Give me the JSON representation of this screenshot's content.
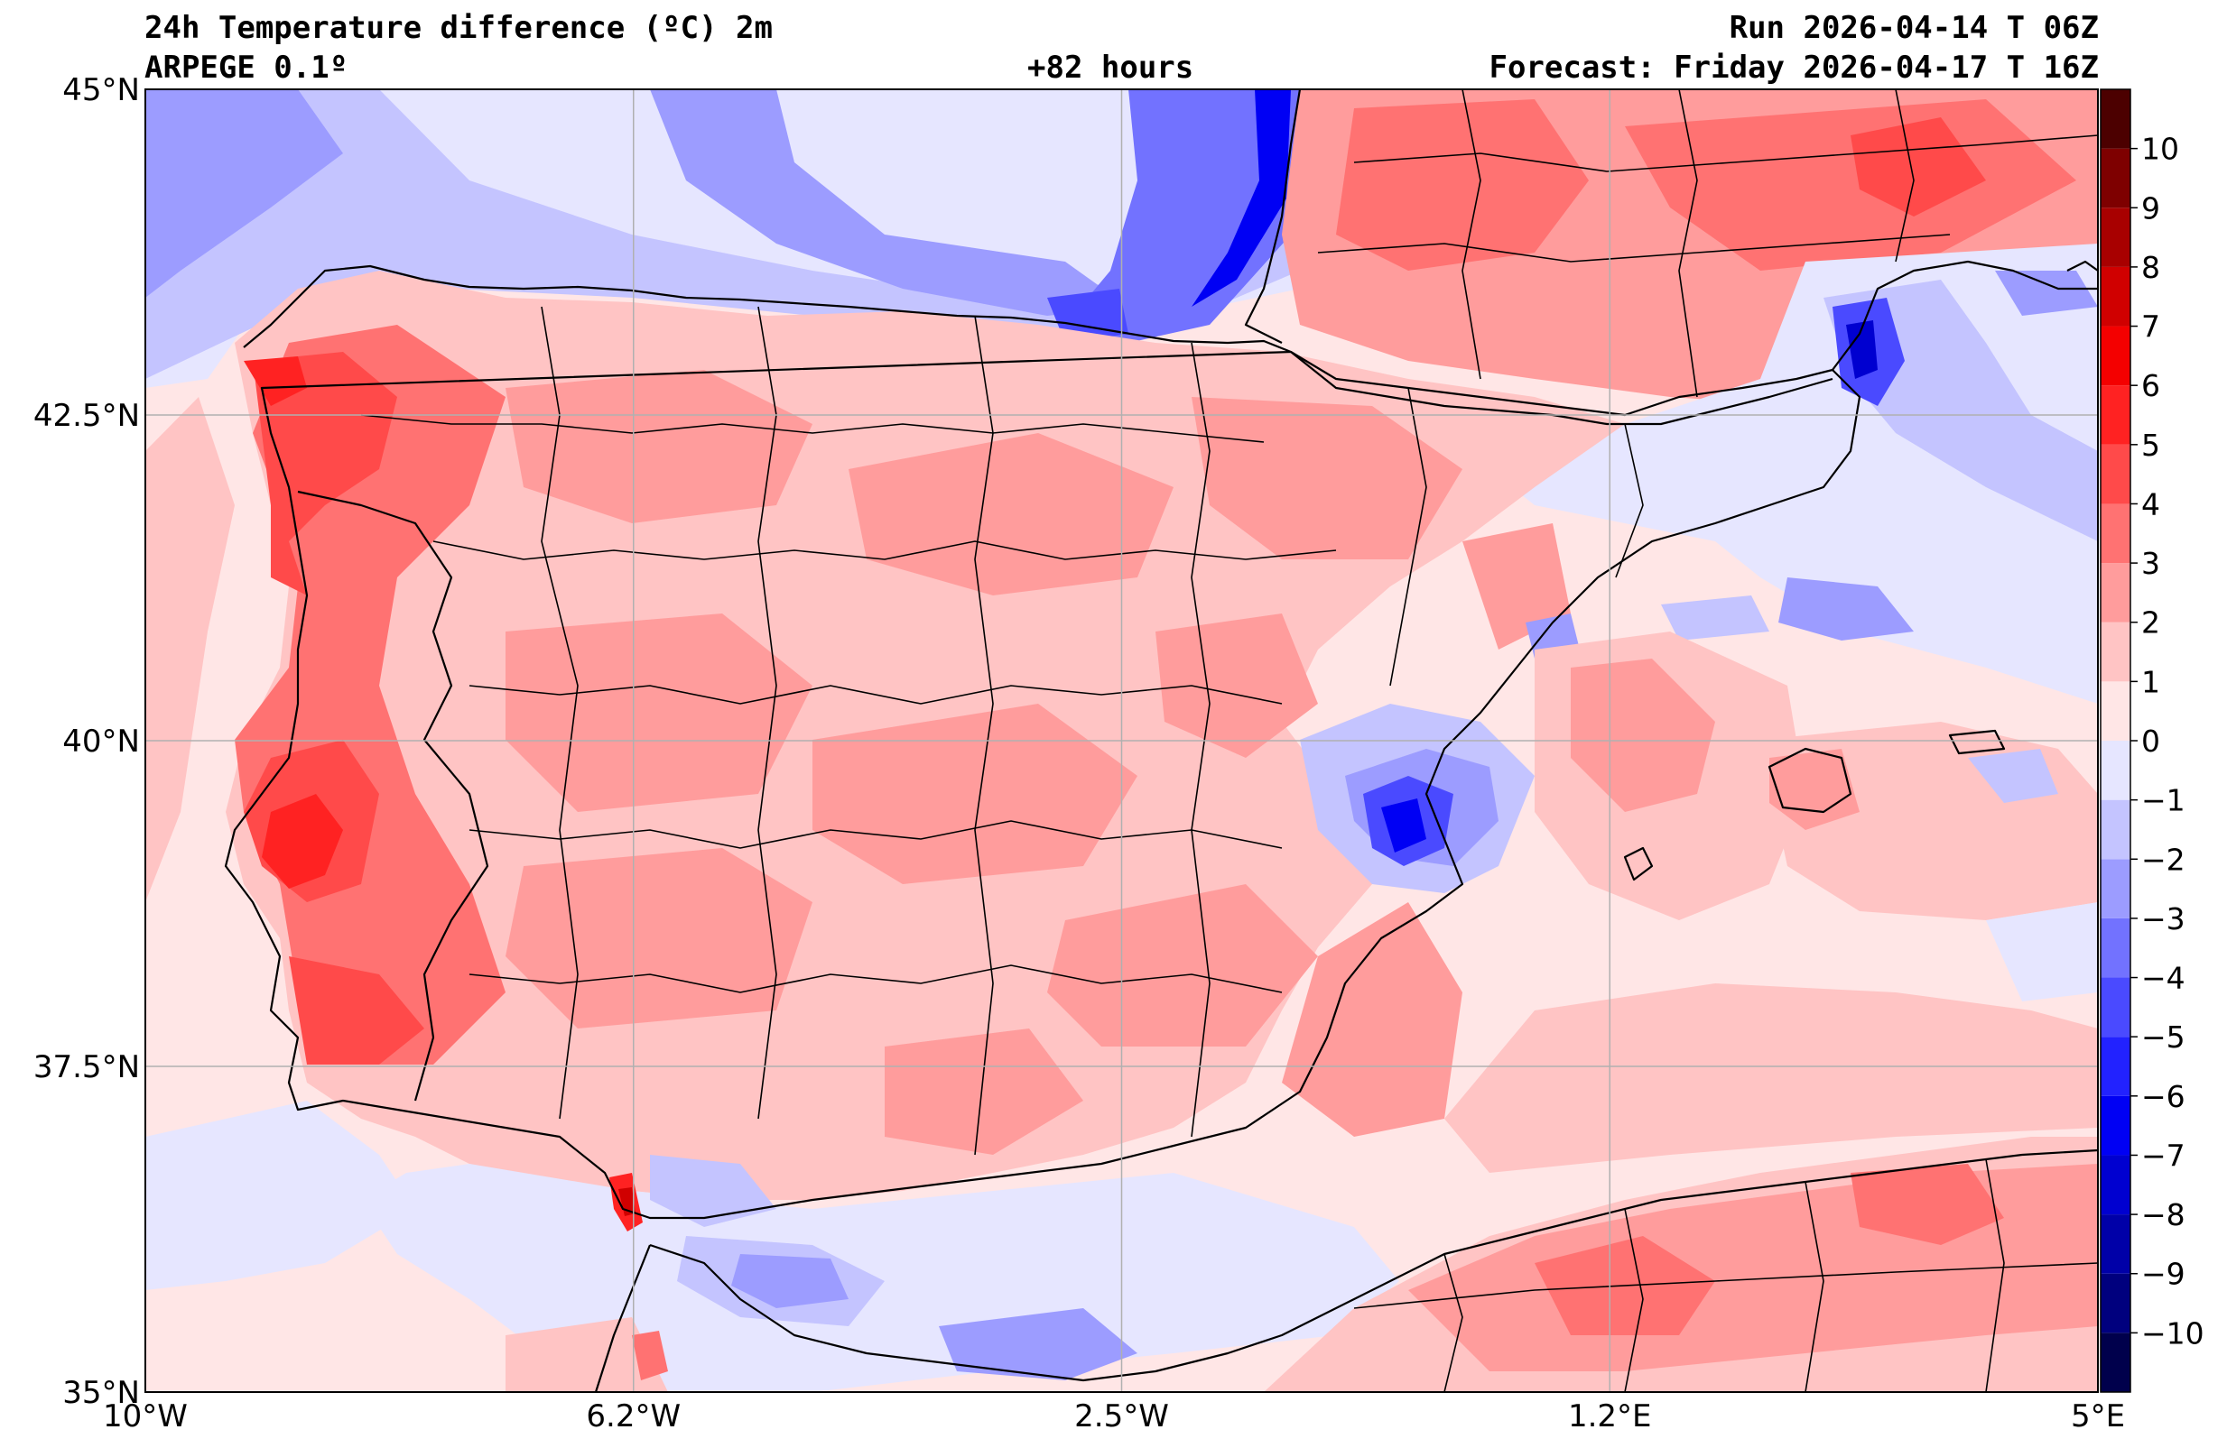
{
  "header": {
    "title": "24h Temperature difference (ºC) 2m",
    "model": "ARPEGE 0.1º",
    "lead": "+82 hours",
    "run": "Run 2026-04-14 T 06Z",
    "forecast": "Forecast: Friday 2026-04-17 T 16Z"
  },
  "map": {
    "projection": "plate-carree",
    "lon_range": [
      -10,
      5
    ],
    "lat_range": [
      35,
      45
    ],
    "gridlines": true,
    "lat_ticks": [
      {
        "value": 45,
        "label": "45°N"
      },
      {
        "value": 42.5,
        "label": "42.5°N"
      },
      {
        "value": 40,
        "label": "40°N"
      },
      {
        "value": 37.5,
        "label": "37.5°N"
      },
      {
        "value": 35,
        "label": "35°N"
      }
    ],
    "lon_ticks": [
      {
        "value": -10,
        "label": "10°W"
      },
      {
        "value": -6.25,
        "label": "6.2°W"
      },
      {
        "value": -2.5,
        "label": "2.5°W"
      },
      {
        "value": 1.25,
        "label": "1.2°E"
      },
      {
        "value": 5,
        "label": "5°E"
      }
    ]
  },
  "colorbar": {
    "range": [
      -11,
      11
    ],
    "levels": [
      -11,
      -10,
      -9,
      -8,
      -7,
      -6,
      -5,
      -4,
      -3,
      -2,
      -1,
      0,
      1,
      2,
      3,
      4,
      5,
      6,
      7,
      8,
      9,
      10,
      11
    ],
    "tick_labels": [
      "10",
      "9",
      "8",
      "7",
      "6",
      "5",
      "4",
      "3",
      "2",
      "1",
      "0",
      "−1",
      "−2",
      "−3",
      "−4",
      "−5",
      "−6",
      "−7",
      "−8",
      "−9",
      "−10"
    ],
    "tick_values": [
      10,
      9,
      8,
      7,
      6,
      5,
      4,
      3,
      2,
      1,
      0,
      -1,
      -2,
      -3,
      -4,
      -5,
      -6,
      -7,
      -8,
      -9,
      -10
    ],
    "colors": [
      "#00004c",
      "#00007e",
      "#0000a8",
      "#0000d0",
      "#0000f4",
      "#2222ff",
      "#4a4aff",
      "#7272ff",
      "#9c9cff",
      "#c4c4ff",
      "#e6e6ff",
      "#ffe6e6",
      "#ffc4c4",
      "#ff9c9c",
      "#ff7272",
      "#ff4a4a",
      "#ff2222",
      "#f40000",
      "#d00000",
      "#a80000",
      "#7e0000",
      "#4c0000"
    ]
  },
  "palette": {
    "land_base": "#ffc4c4",
    "sea_base": "#ffe6e6",
    "border": "#000000",
    "gridline": "#b0b0b0"
  }
}
